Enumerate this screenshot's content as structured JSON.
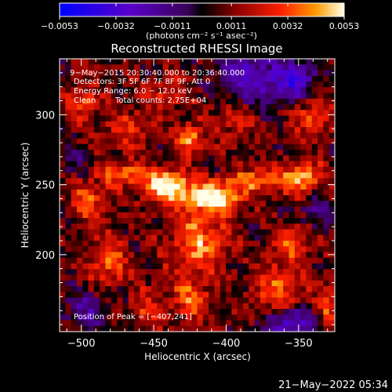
{
  "chart_data": {
    "type": "heatmap",
    "title": "Reconstructed RHESSI Image",
    "xlabel": "Heliocentric X (arcsec)",
    "ylabel": "Heliocentric Y (arcsec)",
    "xlim": [
      -515,
      -325
    ],
    "ylim": [
      145,
      340
    ],
    "xticks": [
      -500,
      -450,
      -400,
      -350
    ],
    "yticks": [
      200,
      250,
      300
    ],
    "xtick_labels": [
      "−500",
      "−450",
      "−400",
      "−350"
    ],
    "ytick_labels": [
      "200",
      "250",
      "300"
    ],
    "colorbar": {
      "min": -0.0053,
      "max": 0.0053,
      "ticks": [
        -0.0053,
        -0.0032,
        -0.0011,
        0.0011,
        0.0032,
        0.0053
      ],
      "tick_labels": [
        "−0.0053",
        "−0.0032",
        "−0.0011",
        "0.0011",
        "0.0032",
        "0.0053"
      ],
      "unit_label": "(photons cm⁻² s⁻¹ asec⁻²)"
    },
    "annotations": {
      "time_range": "9−May−2015 20:30:40.000 to 20:36:40.000",
      "detectors": "Detectors: 3F 5F 6F 7F 8F 9F, Att 0",
      "energy_range": "Energy Range: 6.0 − 12.0 keV",
      "clean_label": "Clean",
      "total_counts": "Total counts: 2.75E+04",
      "peak_position": "Position of Peak = [−407,241]"
    },
    "peak": {
      "x": -407,
      "y": 241
    },
    "sources": [
      {
        "x": -440,
        "y": 248,
        "amp": 0.0053,
        "sx": 11,
        "sy": 8
      },
      {
        "x": -407,
        "y": 241,
        "amp": 0.0053,
        "sx": 11,
        "sy": 7
      },
      {
        "x": -425,
        "y": 283,
        "amp": 0.0038,
        "sx": 6,
        "sy": 7
      },
      {
        "x": -470,
        "y": 258,
        "amp": 0.003,
        "sx": 12,
        "sy": 6
      },
      {
        "x": -378,
        "y": 253,
        "amp": 0.003,
        "sx": 15,
        "sy": 6
      },
      {
        "x": -346,
        "y": 255,
        "amp": 0.0032,
        "sx": 11,
        "sy": 8
      },
      {
        "x": -495,
        "y": 238,
        "amp": 0.0026,
        "sx": 9,
        "sy": 10
      },
      {
        "x": -482,
        "y": 196,
        "amp": 0.003,
        "sx": 9,
        "sy": 12
      },
      {
        "x": -420,
        "y": 210,
        "amp": 0.0032,
        "sx": 14,
        "sy": 18
      },
      {
        "x": -425,
        "y": 168,
        "amp": 0.0026,
        "sx": 9,
        "sy": 10
      },
      {
        "x": -364,
        "y": 175,
        "amp": 0.0028,
        "sx": 12,
        "sy": 14
      },
      {
        "x": -352,
        "y": 210,
        "amp": 0.0026,
        "sx": 9,
        "sy": 9
      },
      {
        "x": -340,
        "y": 300,
        "amp": 0.0026,
        "sx": 9,
        "sy": 9
      },
      {
        "x": -468,
        "y": 290,
        "amp": 0.002,
        "sx": 12,
        "sy": 10
      },
      {
        "x": -500,
        "y": 310,
        "amp": 0.0022,
        "sx": 8,
        "sy": 10
      },
      {
        "x": -440,
        "y": 315,
        "amp": 0.0018,
        "sx": 10,
        "sy": 8
      },
      {
        "x": -395,
        "y": 300,
        "amp": 0.0016,
        "sx": 12,
        "sy": 12
      },
      {
        "x": -455,
        "y": 160,
        "amp": 0.002,
        "sx": 8,
        "sy": 10
      },
      {
        "x": -330,
        "y": 160,
        "amp": 0.0022,
        "sx": 6,
        "sy": 12
      },
      {
        "x": -385,
        "y": 325,
        "amp": -0.0035,
        "sx": 14,
        "sy": 14
      },
      {
        "x": -352,
        "y": 325,
        "amp": -0.004,
        "sx": 10,
        "sy": 10
      },
      {
        "x": -355,
        "y": 150,
        "amp": -0.004,
        "sx": 12,
        "sy": 9
      },
      {
        "x": -496,
        "y": 160,
        "amp": -0.0022,
        "sx": 10,
        "sy": 10
      },
      {
        "x": -338,
        "y": 230,
        "amp": -0.0018,
        "sx": 8,
        "sy": 10
      },
      {
        "x": -505,
        "y": 268,
        "amp": -0.0015,
        "sx": 6,
        "sy": 8
      }
    ]
  },
  "footer": {
    "date": "21−May−2022 05:34"
  }
}
